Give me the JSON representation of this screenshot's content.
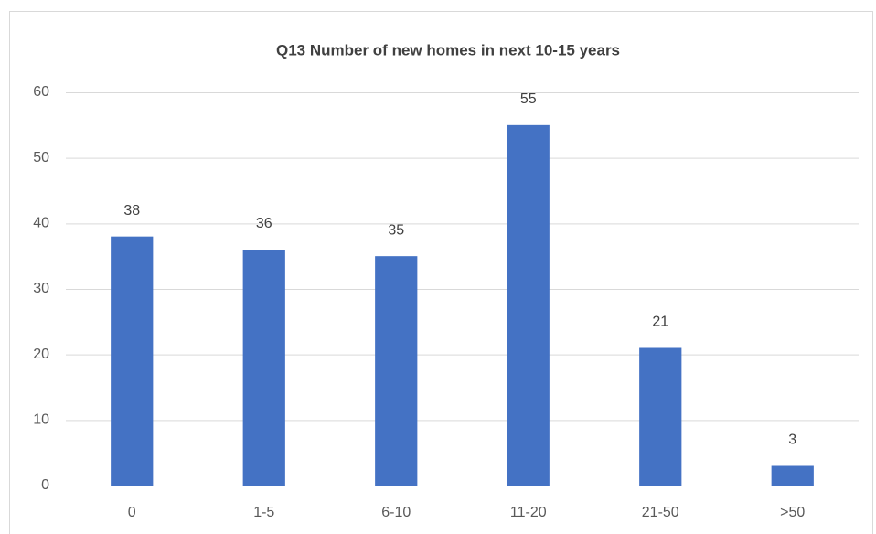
{
  "chart_data": {
    "type": "bar",
    "title": "Q13 Number of new homes in next 10-15 years",
    "categories": [
      "0",
      "1-5",
      "6-10",
      "11-20",
      "21-50",
      ">50"
    ],
    "values": [
      38,
      36,
      35,
      55,
      21,
      3
    ],
    "color": "#4472c4",
    "ylim": [
      0,
      60
    ],
    "yticks": [
      0,
      10,
      20,
      30,
      40,
      50,
      60
    ],
    "grid": true,
    "data_labels": true
  }
}
